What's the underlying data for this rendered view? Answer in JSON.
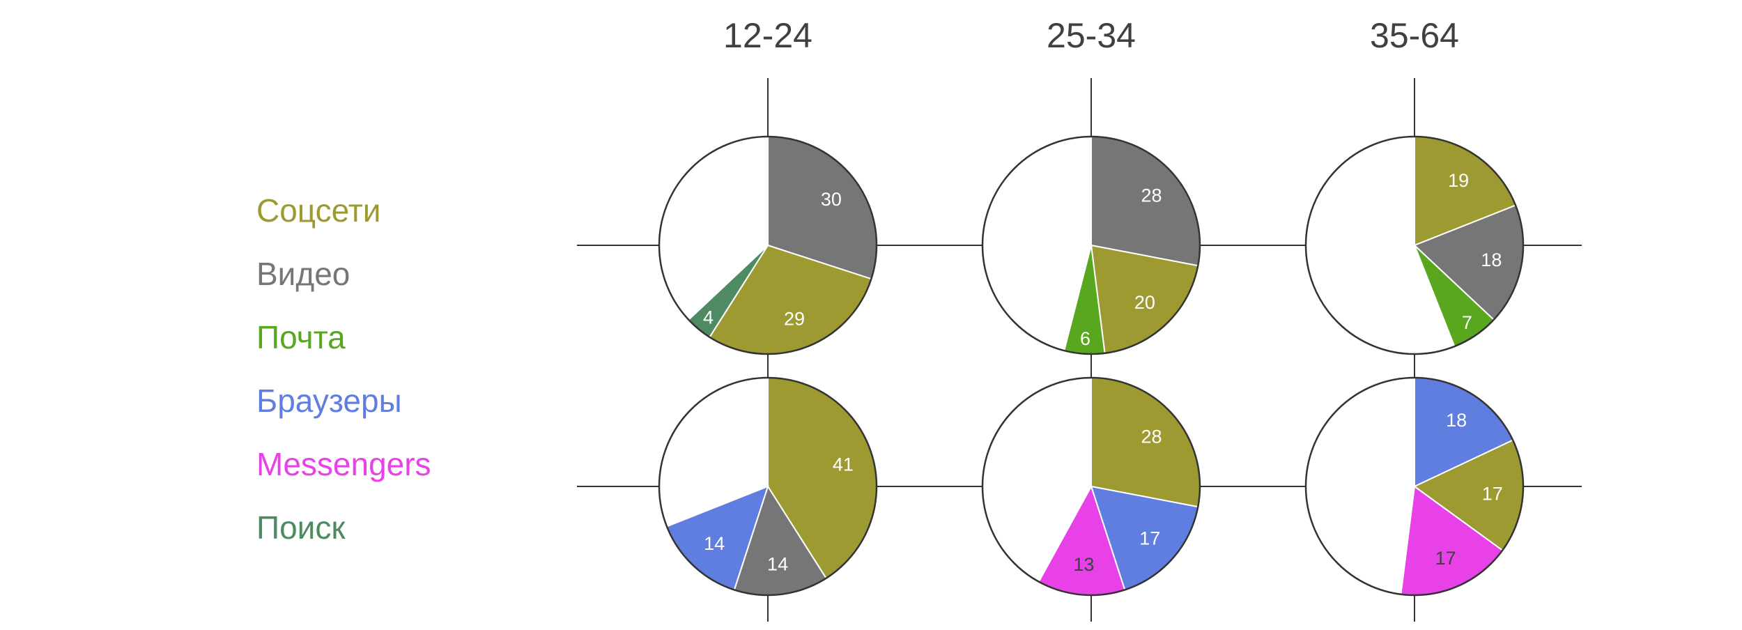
{
  "colors": {
    "Соцсети": "#9e9a32",
    "Видео": "#767676",
    "Почта": "#58a71f",
    "Браузеры": "#5f7ee0",
    "Messengers": "#e941e8",
    "Поиск": "#4e8a62"
  },
  "legend": [
    "Соцсети",
    "Видео",
    "Почта",
    "Браузеры",
    "Messengers",
    "Поиск"
  ],
  "chart_data": {
    "type": "pie",
    "groups": [
      "12-24",
      "25-34",
      "35-64"
    ],
    "pies": [
      {
        "group": "12-24",
        "row": 1,
        "slices": [
          {
            "name": "Видео",
            "value": 30
          },
          {
            "name": "Соцсети",
            "value": 29
          },
          {
            "name": "Поиск",
            "value": 4
          }
        ]
      },
      {
        "group": "25-34",
        "row": 1,
        "slices": [
          {
            "name": "Видео",
            "value": 28
          },
          {
            "name": "Соцсети",
            "value": 20
          },
          {
            "name": "Почта",
            "value": 6
          }
        ]
      },
      {
        "group": "35-64",
        "row": 1,
        "slices": [
          {
            "name": "Соцсети",
            "value": 19
          },
          {
            "name": "Видео",
            "value": 18
          },
          {
            "name": "Почта",
            "value": 7
          }
        ]
      },
      {
        "group": "12-24",
        "row": 2,
        "slices": [
          {
            "name": "Соцсети",
            "value": 41
          },
          {
            "name": "Видео",
            "value": 14
          },
          {
            "name": "Браузеры",
            "value": 14
          }
        ]
      },
      {
        "group": "25-34",
        "row": 2,
        "slices": [
          {
            "name": "Соцсети",
            "value": 28
          },
          {
            "name": "Браузеры",
            "value": 17
          },
          {
            "name": "Messengers",
            "value": 13
          }
        ]
      },
      {
        "group": "35-64",
        "row": 2,
        "slices": [
          {
            "name": "Браузеры",
            "value": 18
          },
          {
            "name": "Соцсети",
            "value": 17
          },
          {
            "name": "Messengers",
            "value": 17
          }
        ]
      }
    ]
  }
}
